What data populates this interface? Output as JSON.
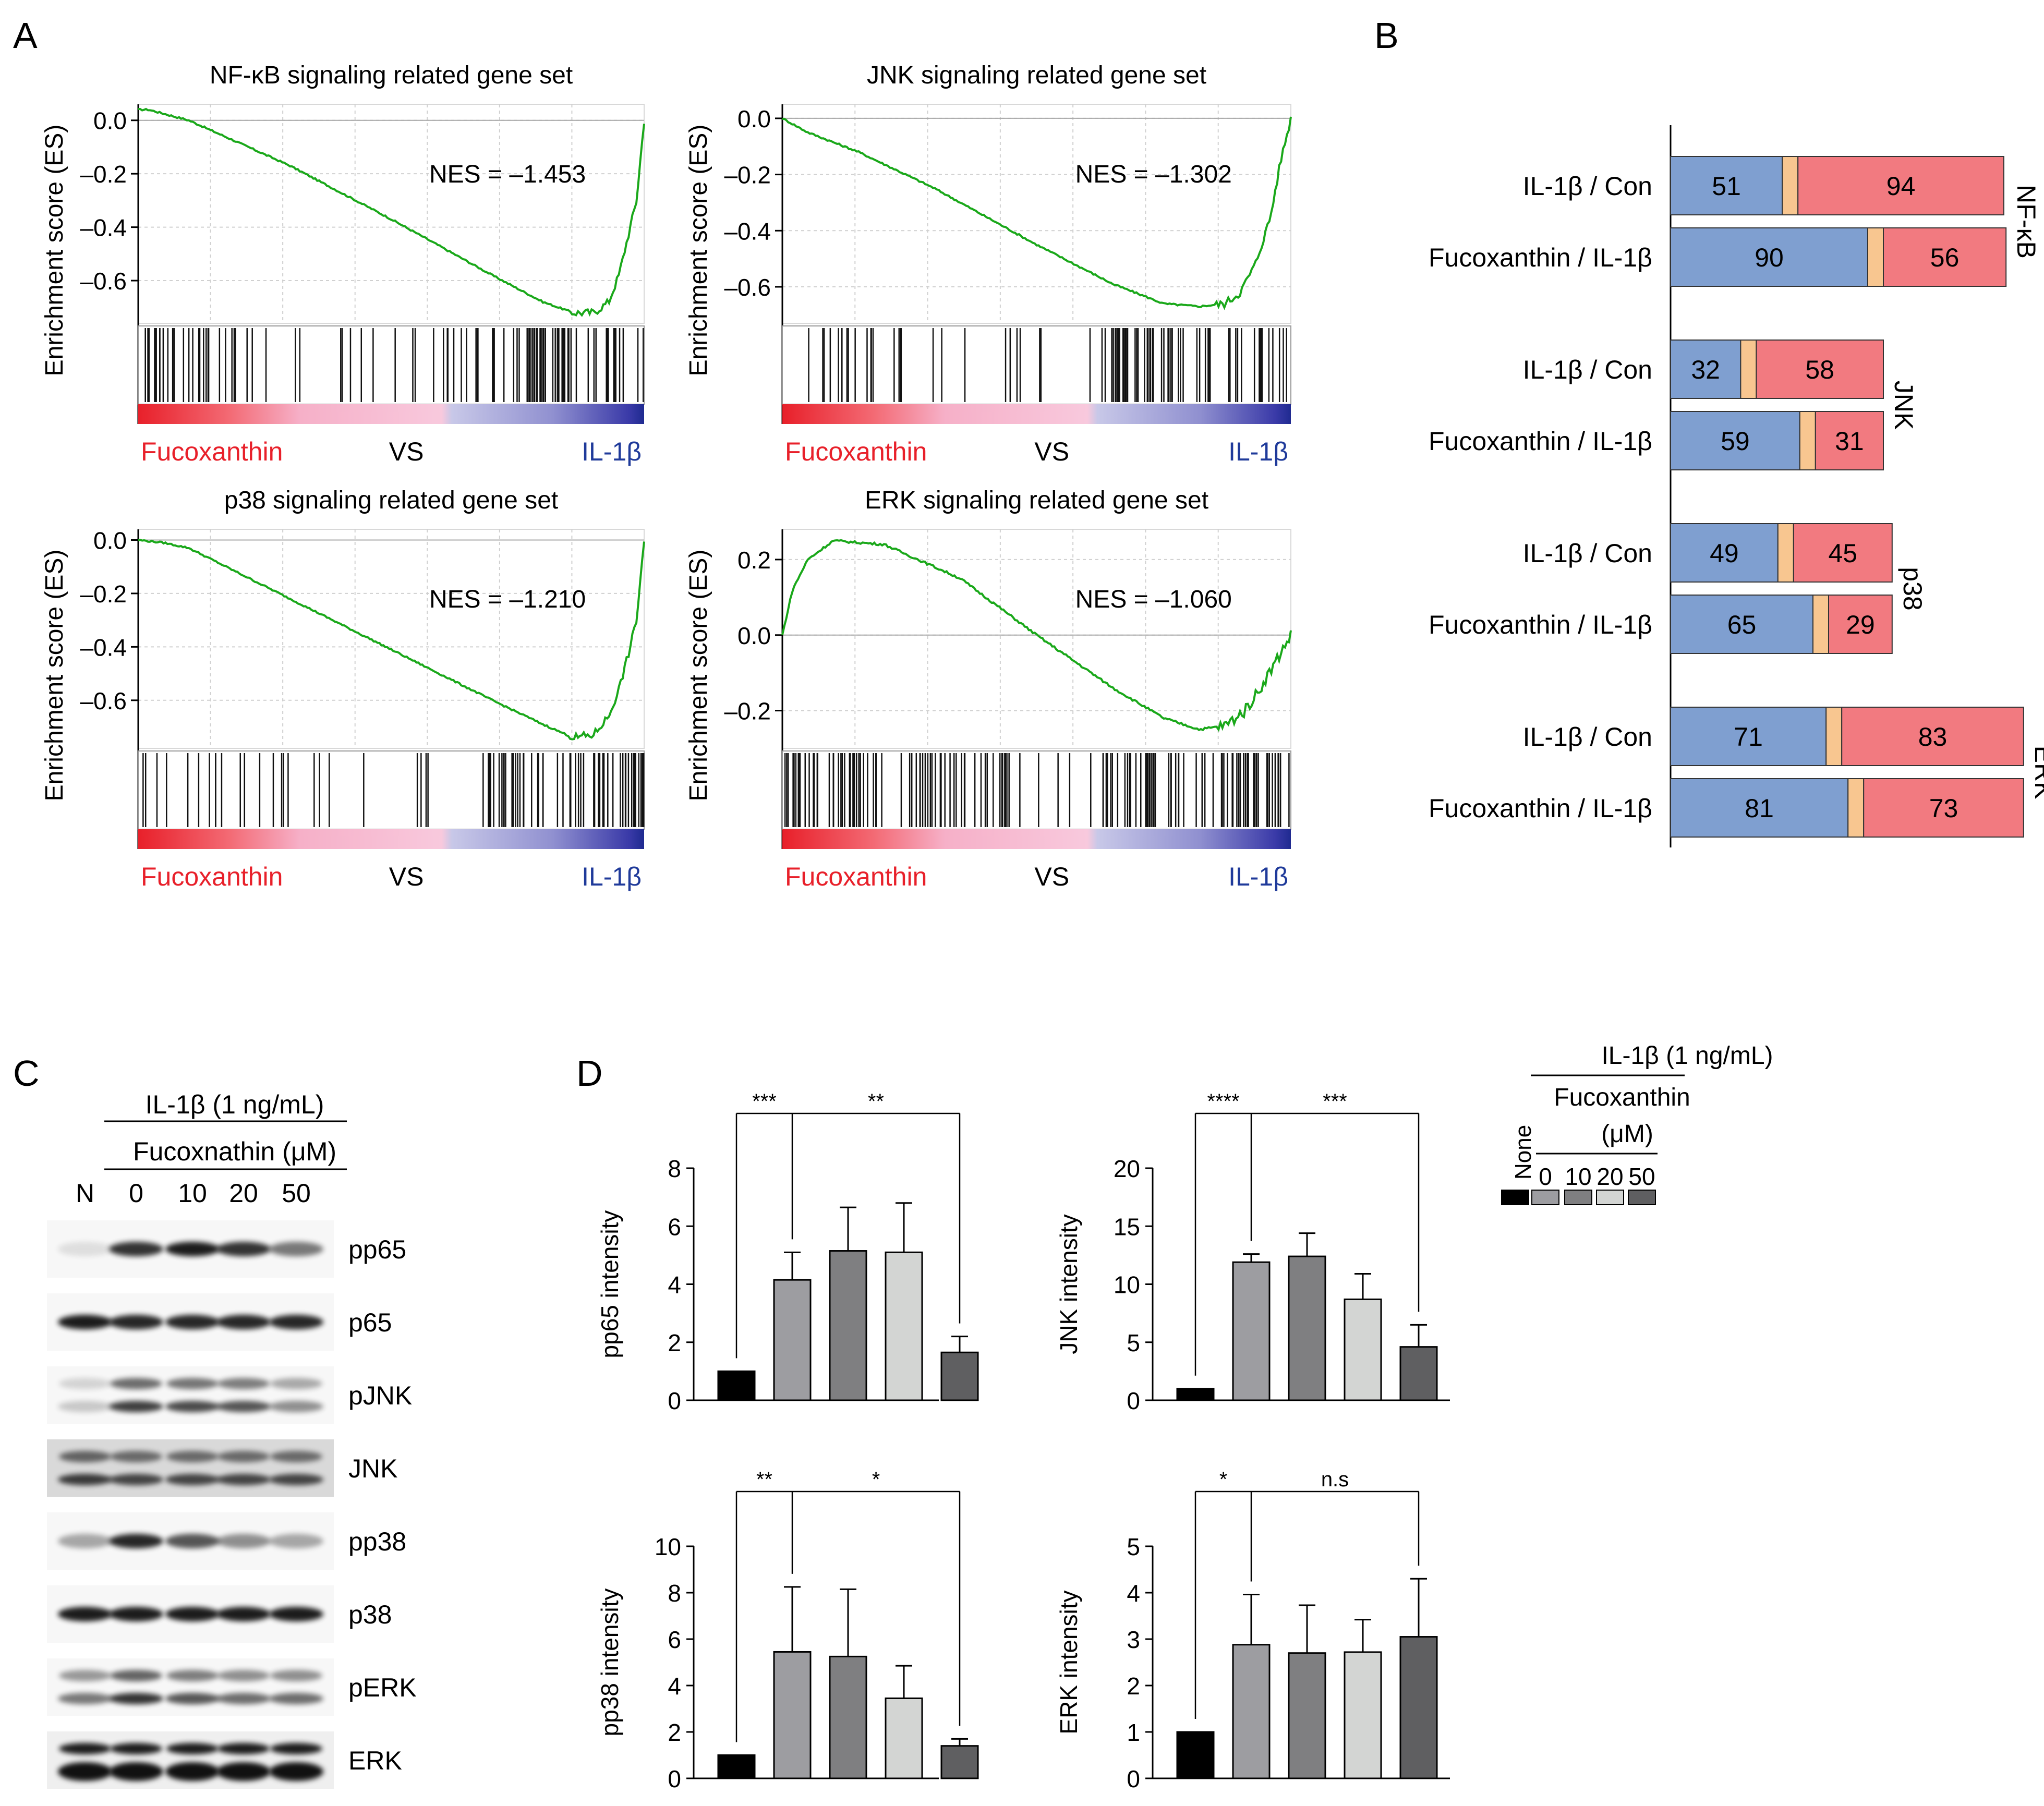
{
  "panel_labels": {
    "A": "A",
    "B": "B",
    "C": "C",
    "D": "D"
  },
  "colors": {
    "es_line": "#1aa81a",
    "fuco_red": "#e8202a",
    "il_blue": "#1f3a9a",
    "bar_blue": "#7f9fd0",
    "bar_orange": "#f8c690",
    "bar_red": "#f27a80",
    "bar_none": "#000000",
    "bar_0": "#9d9da1",
    "bar_10": "#7f7f81",
    "bar_20": "#d3d5d3",
    "bar_50": "#5f5f61"
  },
  "gsea": {
    "ylabel": "Enrichment score (ES)",
    "left_label": "Fucoxanthin",
    "mid_label": "VS",
    "right_label": "IL-1β",
    "plots": [
      {
        "title": "NF-κB signaling related gene set",
        "nes": "NES = –1.453",
        "yticks": [
          "0.0",
          "–0.2",
          "–0.4",
          "–0.6"
        ],
        "ytick_values": [
          0.0,
          -0.2,
          -0.4,
          -0.6
        ],
        "ylim": [
          -0.76,
          0.06
        ],
        "curve_x": [
          0,
          0.02,
          0.1,
          0.3,
          0.5,
          0.7,
          0.8,
          0.86,
          0.9,
          0.93,
          0.95,
          0.97,
          0.985,
          1.0
        ],
        "curve_y": [
          0.04,
          0.04,
          0.0,
          -0.17,
          -0.37,
          -0.58,
          -0.68,
          -0.72,
          -0.72,
          -0.68,
          -0.58,
          -0.42,
          -0.3,
          0.0
        ]
      },
      {
        "title": "JNK signaling related gene set",
        "nes": "NES = –1.302",
        "yticks": [
          "0.0",
          "–0.2",
          "–0.4",
          "–0.6"
        ],
        "ytick_values": [
          0.0,
          -0.2,
          -0.4,
          -0.6
        ],
        "ylim": [
          -0.73,
          0.05
        ],
        "curve_x": [
          0,
          0.05,
          0.15,
          0.3,
          0.5,
          0.65,
          0.75,
          0.82,
          0.87,
          0.9,
          0.93,
          0.96,
          0.98,
          1.0
        ],
        "curve_y": [
          0.0,
          -0.05,
          -0.12,
          -0.25,
          -0.45,
          -0.59,
          -0.66,
          -0.67,
          -0.66,
          -0.62,
          -0.52,
          -0.35,
          -0.15,
          0.0
        ]
      },
      {
        "title": "p38 signaling related gene set",
        "nes": "NES = –1.210",
        "yticks": [
          "0.0",
          "–0.2",
          "–0.4",
          "–0.6"
        ],
        "ytick_values": [
          0.0,
          -0.2,
          -0.4,
          -0.6
        ],
        "ylim": [
          -0.78,
          0.04
        ],
        "curve_x": [
          0,
          0.05,
          0.1,
          0.3,
          0.5,
          0.7,
          0.8,
          0.86,
          0.9,
          0.93,
          0.95,
          0.97,
          0.985,
          1.0
        ],
        "curve_y": [
          0.0,
          -0.01,
          -0.03,
          -0.22,
          -0.41,
          -0.6,
          -0.69,
          -0.74,
          -0.73,
          -0.66,
          -0.56,
          -0.42,
          -0.3,
          0.0
        ]
      },
      {
        "title": "ERK signaling related gene set",
        "nes": "NES = –1.060",
        "yticks": [
          "0.2",
          "0.0",
          "–0.2"
        ],
        "ytick_values": [
          0.2,
          0.0,
          -0.2
        ],
        "ylim": [
          -0.3,
          0.28
        ],
        "curve_x": [
          0,
          0.02,
          0.05,
          0.1,
          0.2,
          0.35,
          0.5,
          0.65,
          0.75,
          0.82,
          0.87,
          0.91,
          0.94,
          0.97,
          1.0
        ],
        "curve_y": [
          0.0,
          0.12,
          0.2,
          0.25,
          0.24,
          0.15,
          0.0,
          -0.14,
          -0.22,
          -0.25,
          -0.24,
          -0.2,
          -0.14,
          -0.07,
          0.0
        ]
      }
    ]
  },
  "panel_b": {
    "groups": [
      {
        "name": "NF-κB",
        "rows": [
          {
            "label": "IL-1β / Con",
            "left": 51,
            "right": 94
          },
          {
            "label": "Fucoxanthin / IL-1β",
            "left": 90,
            "right": 56
          }
        ]
      },
      {
        "name": "JNK",
        "rows": [
          {
            "label": "IL-1β / Con",
            "left": 32,
            "right": 58
          },
          {
            "label": "Fucoxanthin / IL-1β",
            "left": 59,
            "right": 31
          }
        ]
      },
      {
        "name": "p38",
        "rows": [
          {
            "label": "IL-1β / Con",
            "left": 49,
            "right": 45
          },
          {
            "label": "Fucoxanthin / IL-1β",
            "left": 65,
            "right": 29
          }
        ]
      },
      {
        "name": "ERK",
        "rows": [
          {
            "label": "IL-1β / Con",
            "left": 71,
            "right": 83
          },
          {
            "label": "Fucoxanthin / IL-1β",
            "left": 81,
            "right": 73
          }
        ]
      }
    ]
  },
  "panel_c": {
    "treatment": "IL-1β (1 ng/mL)",
    "drug": "Fucoxnathin (μM)",
    "lanes": [
      "N",
      "0",
      "10",
      "20",
      "50"
    ],
    "blots": [
      {
        "label": "pp65",
        "intensity": [
          0.1,
          0.85,
          0.95,
          0.85,
          0.55
        ]
      },
      {
        "label": "p65",
        "intensity": [
          0.95,
          0.9,
          0.9,
          0.9,
          0.9
        ]
      },
      {
        "label": "pJNK",
        "intensity": [
          0.2,
          0.8,
          0.75,
          0.7,
          0.45
        ]
      },
      {
        "label": "JNK",
        "intensity": [
          0.8,
          0.75,
          0.75,
          0.75,
          0.75
        ]
      },
      {
        "label": "pp38",
        "intensity": [
          0.35,
          0.9,
          0.7,
          0.45,
          0.35
        ]
      },
      {
        "label": "p38",
        "intensity": [
          0.95,
          0.95,
          0.95,
          0.95,
          0.95
        ]
      },
      {
        "label": "pERK",
        "intensity": [
          0.55,
          0.85,
          0.7,
          0.6,
          0.6
        ]
      },
      {
        "label": "ERK",
        "intensity": [
          1.0,
          1.0,
          1.0,
          1.0,
          1.0
        ]
      }
    ]
  },
  "legend": {
    "treatment": "IL-1β (1 ng/mL)",
    "drug": "Fucoxanthin",
    "unit": "(μM)",
    "none": "None",
    "doses": [
      "0",
      "10",
      "20",
      "50"
    ]
  },
  "chart_data": [
    {
      "type": "bar",
      "ylabel": "pp65 intensity",
      "categories": [
        "None",
        "0",
        "10",
        "20",
        "50"
      ],
      "values": [
        1.0,
        4.15,
        5.15,
        5.1,
        1.65
      ],
      "errors": [
        0.0,
        0.95,
        1.5,
        1.7,
        0.55
      ],
      "ylim": [
        0,
        8
      ],
      "yticks": [
        0,
        2,
        4,
        6,
        8
      ],
      "sig": [
        {
          "text": "***",
          "from": 0,
          "to": 1
        },
        {
          "text": "**",
          "from": 1,
          "to": 4
        }
      ]
    },
    {
      "type": "bar",
      "ylabel": "JNK intensity",
      "categories": [
        "None",
        "0",
        "10",
        "20",
        "50"
      ],
      "values": [
        1.0,
        11.9,
        12.4,
        8.7,
        4.6
      ],
      "errors": [
        0.0,
        0.7,
        2.0,
        2.2,
        1.9
      ],
      "ylim": [
        0,
        20
      ],
      "yticks": [
        0,
        5,
        10,
        15,
        20
      ],
      "sig": [
        {
          "text": "****",
          "from": 0,
          "to": 1
        },
        {
          "text": "***",
          "from": 1,
          "to": 4
        }
      ]
    },
    {
      "type": "bar",
      "ylabel": "pp38 intensity",
      "categories": [
        "None",
        "0",
        "10",
        "20",
        "50"
      ],
      "values": [
        1.0,
        5.45,
        5.25,
        3.45,
        1.4
      ],
      "errors": [
        0.0,
        2.8,
        2.9,
        1.4,
        0.3
      ],
      "ylim": [
        0,
        10
      ],
      "yticks": [
        0,
        2,
        4,
        6,
        8,
        10
      ],
      "sig": [
        {
          "text": "**",
          "from": 0,
          "to": 1
        },
        {
          "text": "*",
          "from": 1,
          "to": 4
        }
      ]
    },
    {
      "type": "bar",
      "ylabel": "ERK intensity",
      "categories": [
        "None",
        "0",
        "10",
        "20",
        "50"
      ],
      "values": [
        1.0,
        2.88,
        2.7,
        2.72,
        3.05
      ],
      "errors": [
        0.0,
        1.08,
        1.03,
        0.7,
        1.25
      ],
      "ylim": [
        0,
        5
      ],
      "yticks": [
        0,
        1,
        2,
        3,
        4,
        5
      ],
      "sig": [
        {
          "text": "*",
          "from": 0,
          "to": 1
        },
        {
          "text": "n.s",
          "from": 1,
          "to": 4
        }
      ]
    }
  ]
}
